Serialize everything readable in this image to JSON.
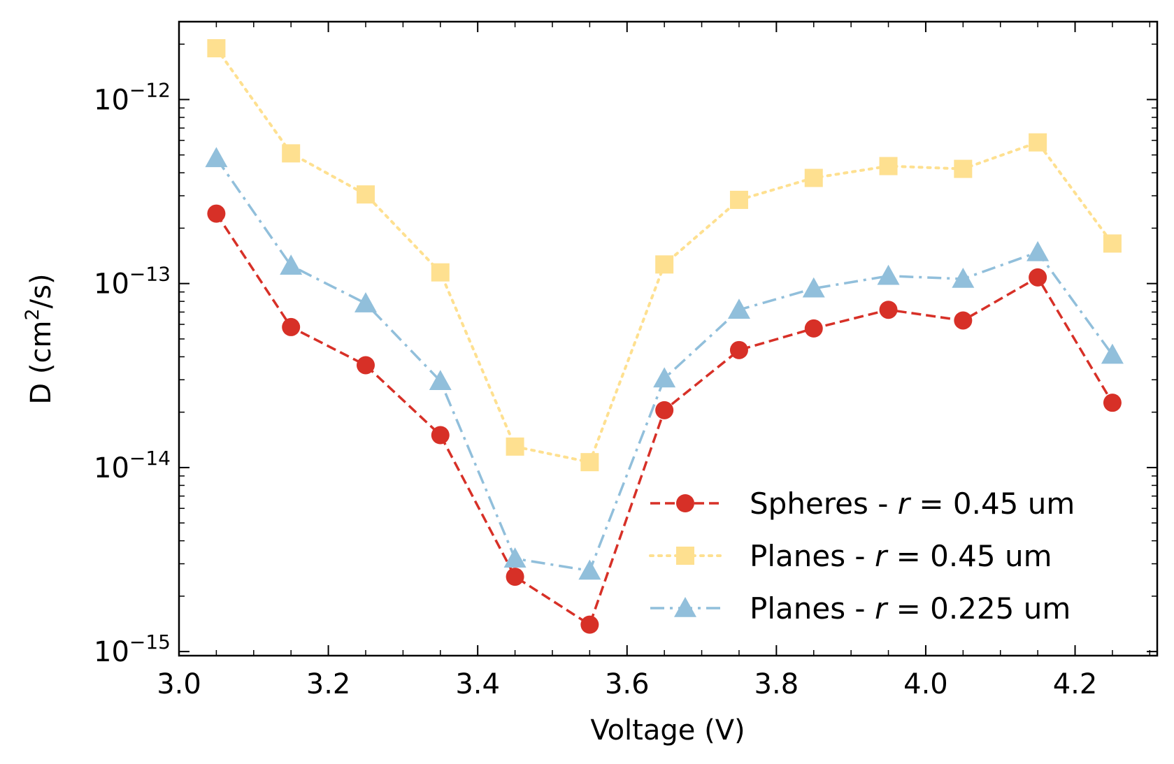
{
  "chart_data": {
    "type": "line",
    "xlabel": "Voltage (V)",
    "ylabel_base": "D (cm",
    "ylabel_sup": "2",
    "ylabel_tail": "/s)",
    "yscale": "log",
    "xlim": [
      3.0,
      4.31
    ],
    "ylim": [
      9.5e-16,
      2.65e-12
    ],
    "grid": false,
    "legend_position": "lower-right",
    "x": [
      3.05,
      3.15,
      3.25,
      3.35,
      3.45,
      3.55,
      3.65,
      3.75,
      3.85,
      3.95,
      4.05,
      4.15,
      4.25
    ],
    "x_ticks": [
      {
        "value": 3.0,
        "label": "3.0"
      },
      {
        "value": 3.2,
        "label": "3.2"
      },
      {
        "value": 3.4,
        "label": "3.4"
      },
      {
        "value": 3.6,
        "label": "3.6"
      },
      {
        "value": 3.8,
        "label": "3.8"
      },
      {
        "value": 4.0,
        "label": "4.0"
      },
      {
        "value": 4.2,
        "label": "4.2"
      }
    ],
    "y_ticks": [
      {
        "value": 1e-12,
        "label": "10",
        "exponent": "−12"
      },
      {
        "value": 1e-13,
        "label": "10",
        "exponent": "−13"
      },
      {
        "value": 1e-14,
        "label": "10",
        "exponent": "−14"
      },
      {
        "value": 1e-15,
        "label": "10",
        "exponent": "−15"
      }
    ],
    "series": [
      {
        "name_prefix": "Spheres - ",
        "name_var": "r",
        "name_suffix": " = 0.45 um",
        "color": "#d73027",
        "marker": "circle",
        "linestyle": "dashed",
        "values": [
          2.4e-13,
          5.8e-14,
          3.6e-14,
          1.5e-14,
          2.55e-15,
          1.4e-15,
          2.05e-14,
          4.35e-14,
          5.7e-14,
          7.2e-14,
          6.3e-14,
          1.08e-13,
          2.25e-14
        ]
      },
      {
        "name_prefix": "Planes - ",
        "name_var": "r",
        "name_suffix": " = 0.45 um",
        "color": "#fee090",
        "marker": "square",
        "linestyle": "dotted",
        "values": [
          1.9e-12,
          5.1e-13,
          3.05e-13,
          1.15e-13,
          1.3e-14,
          1.07e-14,
          1.27e-13,
          2.85e-13,
          3.75e-13,
          4.35e-13,
          4.2e-13,
          5.85e-13,
          1.65e-13
        ]
      },
      {
        "name_prefix": "Planes - ",
        "name_var": "r",
        "name_suffix": " = 0.225 um",
        "color": "#91bfdb",
        "marker": "triangle",
        "linestyle": "dashdot",
        "values": [
          4.8e-13,
          1.25e-13,
          7.8e-14,
          2.95e-14,
          3.2e-15,
          2.75e-15,
          3.05e-14,
          7.2e-14,
          9.4e-14,
          1.1e-13,
          1.06e-13,
          1.48e-13,
          4.1e-14
        ]
      }
    ]
  }
}
